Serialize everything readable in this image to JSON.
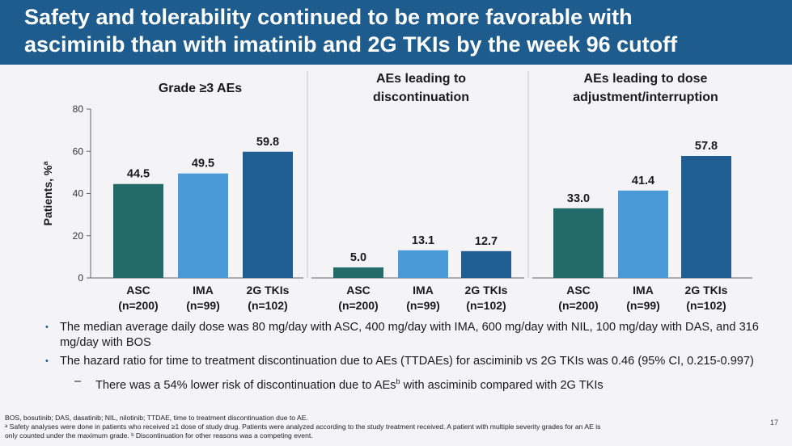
{
  "header": {
    "title_line1": "Safety and tolerability continued to be more favorable with",
    "title_line2": "asciminib than with imatinib and 2G TKIs by the week 96 cutoff"
  },
  "chart_data": {
    "type": "bar",
    "ylabel": "Patients, %",
    "ylabel_superscript": "a",
    "ylim": [
      0,
      80
    ],
    "yticks": [
      0,
      20,
      40,
      60,
      80
    ],
    "grid": false,
    "panels": [
      {
        "title_lines": [
          "Grade ≥3 AEs"
        ],
        "categories": [
          "ASC",
          "IMA",
          "2G TKIs"
        ],
        "category_n": [
          "(n=200)",
          "(n=99)",
          "(n=102)"
        ],
        "values": [
          44.5,
          49.5,
          59.8
        ],
        "value_labels": [
          "44.5",
          "49.5",
          "59.8"
        ]
      },
      {
        "title_lines": [
          "AEs leading to",
          "discontinuation"
        ],
        "categories": [
          "ASC",
          "IMA",
          "2G TKIs"
        ],
        "category_n": [
          "(n=200)",
          "(n=99)",
          "(n=102)"
        ],
        "values": [
          5.0,
          13.1,
          12.7
        ],
        "value_labels": [
          "5.0",
          "13.1",
          "12.7"
        ]
      },
      {
        "title_lines": [
          "AEs leading to dose",
          "adjustment/interruption"
        ],
        "categories": [
          "ASC",
          "IMA",
          "2G TKIs"
        ],
        "category_n": [
          "(n=200)",
          "(n=99)",
          "(n=102)"
        ],
        "values": [
          33.0,
          41.4,
          57.8
        ],
        "value_labels": [
          "33.0",
          "41.4",
          "57.8"
        ]
      }
    ],
    "colors": [
      "#236a68",
      "#4b9ad8",
      "#1f5d93"
    ]
  },
  "bullets": {
    "b1": "The median average daily dose was 80 mg/day with ASC, 400 mg/day with IMA, 600 mg/day with NIL, 100 mg/day with DAS, and 316 mg/day with BOS",
    "b2": "The hazard ratio for time to treatment discontinuation due to AEs (TTDAEs) for asciminib vs 2G TKIs was 0.46 (95% CI, 0.215-0.997)",
    "sub_pre": "There was a 54% lower risk of discontinuation due to AEs",
    "sub_sup": "b",
    "sub_post": " with asciminib compared with 2G TKIs"
  },
  "footnotes": {
    "abbrev": "BOS, bosutinib; DAS, dasatinib; NIL, nilotinib; TTDAE, time to treatment discontinuation due to AE.",
    "note_a": "ᵃ Safety analyses were done in patients who received ≥1 dose of study drug. Patients were analyzed according to the study treatment received. A patient with multiple severity grades for an AE is",
    "note_a2": "only counted under the maximum grade. ᵇ Discontinuation for other reasons was a competing event."
  },
  "page_number": "17"
}
